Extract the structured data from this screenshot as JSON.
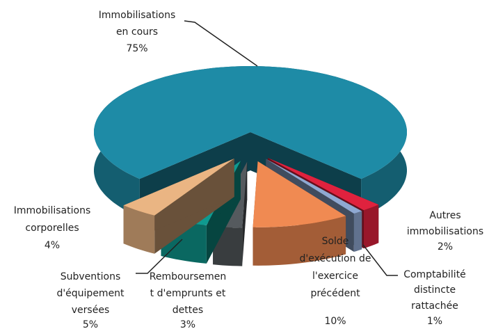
{
  "chart_data": {
    "type": "pie3d",
    "categories": [
      [
        "Immobilisations",
        "en cours"
      ],
      [
        "Autres",
        "immobilisations"
      ],
      [
        "Comptabilité",
        "distincte",
        "rattachée"
      ],
      [
        "Solde",
        "d'exécution de",
        "l'exercice",
        "précédent"
      ],
      [
        "Remboursemen",
        "t d'emprunts et",
        "dettes"
      ],
      [
        "Subventions",
        "d'équipement",
        "versées"
      ],
      [
        "Immobilisations",
        "corporelles"
      ]
    ],
    "values": [
      75,
      2,
      1,
      10,
      3,
      5,
      4
    ],
    "value_labels": [
      "75%",
      "2%",
      "1%",
      "10%",
      "3%",
      "5%",
      "4%"
    ],
    "colors": [
      "#1e8ba6",
      "#e0223e",
      "#8fa9d2",
      "#f08a52",
      "#555a5e",
      "#0f9a90",
      "#eab583"
    ]
  }
}
